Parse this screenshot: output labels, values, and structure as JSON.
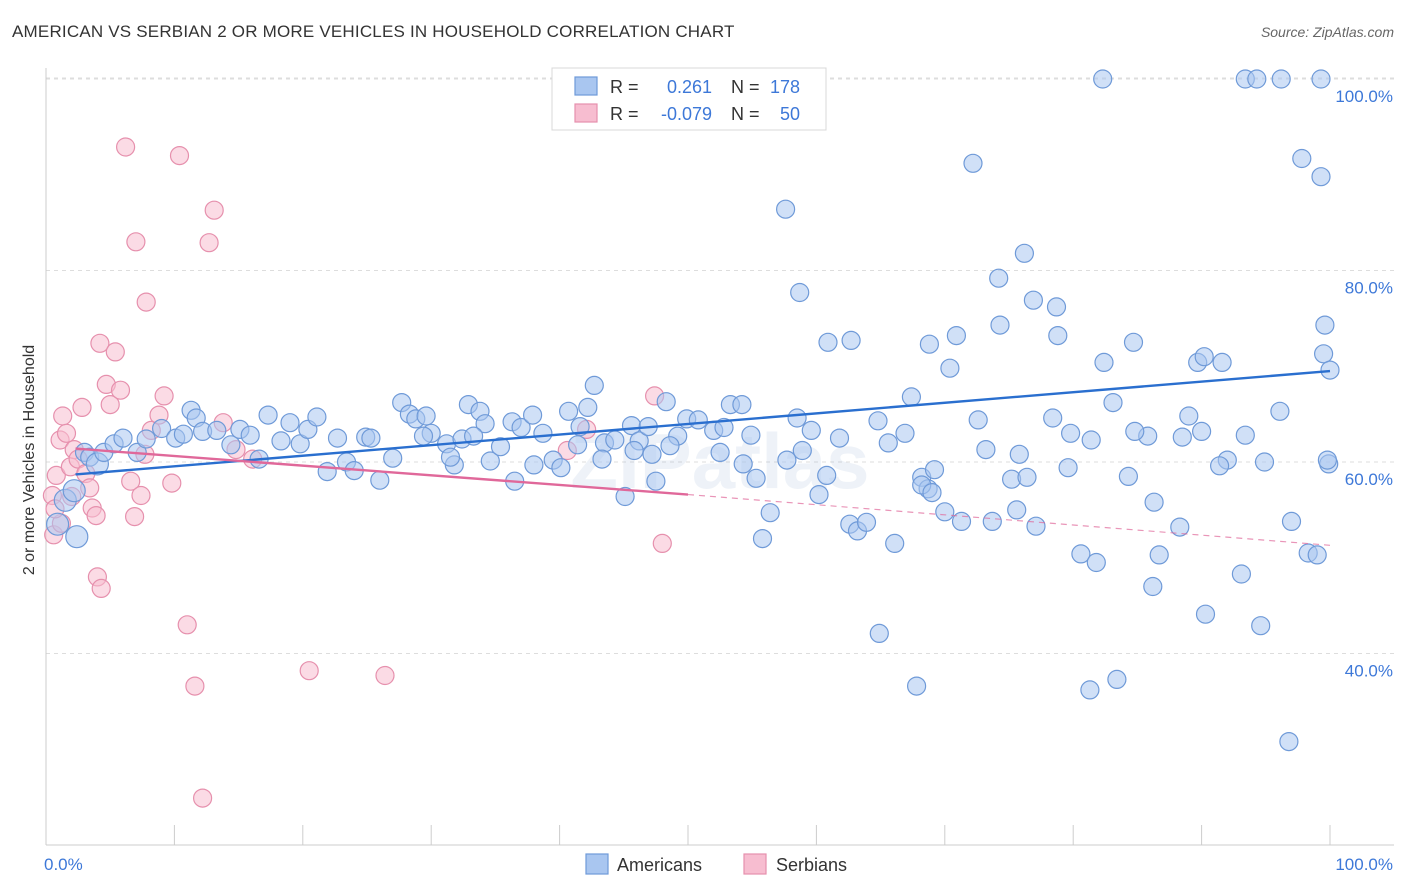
{
  "title": "AMERICAN VS SERBIAN 2 OR MORE VEHICLES IN HOUSEHOLD CORRELATION CHART",
  "source": "Source: ZipAtlas.com",
  "watermark": "ZIPatlas",
  "colors": {
    "americans_fill": "#a9c6f0",
    "americans_stroke": "#6f9ad8",
    "americans_line": "#2a6fcf",
    "serbians_fill": "#f7bdd0",
    "serbians_stroke": "#e690ad",
    "serbians_line": "#e0689a",
    "tick_text": "#3d78d8",
    "grid": "#dddddd"
  },
  "legend": {
    "americans": {
      "r_label": "R =",
      "r_value": "0.261",
      "n_label": "N =",
      "n_value": "178"
    },
    "serbians": {
      "r_label": "R =",
      "r_value": "-0.079",
      "n_label": "N =",
      "n_value": "50"
    }
  },
  "bottom_legend": [
    "Americans",
    "Serbians"
  ],
  "chart_data": {
    "type": "scatter",
    "title": "AMERICAN VS SERBIAN 2 OR MORE VEHICLES IN HOUSEHOLD CORRELATION CHART",
    "xlabel": "",
    "ylabel": "2 or more Vehicles in Household",
    "xlim": [
      0,
      100
    ],
    "ylim": [
      20,
      102
    ],
    "x_tick_labels": [
      "0.0%",
      "100.0%"
    ],
    "y_ticks": [
      40,
      60,
      80,
      100
    ],
    "y_tick_labels": [
      "40.0%",
      "60.0%",
      "80.0%",
      "100.0%"
    ],
    "grid": true,
    "legend_position": "top-center",
    "series": [
      {
        "name": "Americans",
        "r": 0.261,
        "n": 178,
        "trend": [
          [
            2.3,
            58.7
          ],
          [
            100,
            69.5
          ]
        ],
        "points": [
          [
            0.9,
            53.5
          ],
          [
            1.5,
            56.0
          ],
          [
            2.2,
            57.0
          ],
          [
            2.4,
            52.2
          ],
          [
            3.0,
            61.0
          ],
          [
            3.4,
            60.5
          ],
          [
            4.0,
            59.8
          ],
          [
            4.5,
            61.0
          ],
          [
            5.3,
            61.9
          ],
          [
            6.0,
            62.5
          ],
          [
            7.1,
            61.0
          ],
          [
            7.8,
            62.4
          ],
          [
            9.0,
            63.5
          ],
          [
            10.1,
            62.5
          ],
          [
            10.7,
            62.9
          ],
          [
            11.3,
            65.4
          ],
          [
            11.7,
            64.6
          ],
          [
            12.2,
            63.2
          ],
          [
            13.3,
            63.3
          ],
          [
            14.4,
            61.8
          ],
          [
            15.1,
            63.4
          ],
          [
            15.9,
            62.8
          ],
          [
            16.6,
            60.3
          ],
          [
            17.3,
            64.9
          ],
          [
            18.3,
            62.2
          ],
          [
            19.0,
            64.1
          ],
          [
            19.8,
            61.9
          ],
          [
            20.4,
            63.4
          ],
          [
            21.1,
            64.7
          ],
          [
            21.9,
            59.0
          ],
          [
            22.7,
            62.5
          ],
          [
            23.4,
            60.0
          ],
          [
            24.0,
            59.1
          ],
          [
            24.9,
            62.6
          ],
          [
            26.0,
            58.1
          ],
          [
            27.0,
            60.4
          ],
          [
            27.7,
            66.2
          ],
          [
            28.3,
            65.0
          ],
          [
            28.8,
            64.5
          ],
          [
            29.6,
            64.8
          ],
          [
            30.0,
            63.0
          ],
          [
            31.2,
            61.9
          ],
          [
            31.8,
            59.7
          ],
          [
            32.4,
            62.4
          ],
          [
            32.9,
            66.0
          ],
          [
            33.8,
            65.3
          ],
          [
            34.6,
            60.1
          ],
          [
            35.4,
            61.6
          ],
          [
            36.3,
            64.2
          ],
          [
            37.0,
            63.6
          ],
          [
            37.9,
            64.9
          ],
          [
            38.7,
            63.0
          ],
          [
            39.5,
            60.2
          ],
          [
            40.1,
            59.4
          ],
          [
            40.7,
            65.3
          ],
          [
            41.4,
            61.8
          ],
          [
            42.2,
            65.7
          ],
          [
            42.7,
            68.0
          ],
          [
            43.5,
            62.0
          ],
          [
            44.3,
            62.3
          ],
          [
            45.1,
            56.4
          ],
          [
            45.6,
            63.8
          ],
          [
            46.2,
            62.2
          ],
          [
            46.9,
            63.7
          ],
          [
            47.5,
            58.0
          ],
          [
            48.3,
            66.3
          ],
          [
            49.2,
            62.7
          ],
          [
            49.9,
            64.5
          ],
          [
            50.8,
            64.4
          ],
          [
            52.0,
            63.3
          ],
          [
            53.3,
            66.0
          ],
          [
            54.3,
            59.8
          ],
          [
            54.9,
            62.8
          ],
          [
            55.3,
            58.3
          ],
          [
            56.4,
            54.7
          ],
          [
            57.7,
            60.2
          ],
          [
            58.5,
            64.6
          ],
          [
            59.6,
            63.3
          ],
          [
            60.2,
            56.6
          ],
          [
            60.8,
            58.6
          ],
          [
            61.8,
            62.5
          ],
          [
            62.6,
            53.5
          ],
          [
            63.2,
            52.8
          ],
          [
            63.9,
            53.7
          ],
          [
            64.8,
            64.3
          ],
          [
            65.6,
            62.0
          ],
          [
            66.1,
            51.5
          ],
          [
            66.9,
            63.0
          ],
          [
            67.4,
            66.8
          ],
          [
            68.2,
            58.4
          ],
          [
            68.7,
            57.2
          ],
          [
            69.2,
            59.2
          ],
          [
            70.0,
            54.8
          ],
          [
            70.4,
            69.8
          ],
          [
            70.9,
            73.2
          ],
          [
            71.3,
            53.8
          ],
          [
            72.6,
            64.4
          ],
          [
            73.2,
            61.3
          ],
          [
            73.7,
            53.8
          ],
          [
            74.2,
            79.2
          ],
          [
            75.2,
            58.2
          ],
          [
            75.8,
            60.8
          ],
          [
            76.4,
            58.4
          ],
          [
            77.1,
            53.3
          ],
          [
            76.9,
            76.9
          ],
          [
            78.4,
            64.6
          ],
          [
            78.8,
            73.2
          ],
          [
            79.6,
            59.4
          ],
          [
            80.6,
            50.4
          ],
          [
            81.4,
            62.3
          ],
          [
            81.8,
            49.5
          ],
          [
            83.1,
            66.2
          ],
          [
            84.3,
            58.5
          ],
          [
            84.7,
            72.5
          ],
          [
            85.8,
            62.7
          ],
          [
            86.3,
            55.8
          ],
          [
            86.7,
            50.3
          ],
          [
            88.3,
            53.2
          ],
          [
            89.0,
            64.8
          ],
          [
            89.7,
            70.4
          ],
          [
            90.2,
            71.0
          ],
          [
            91.6,
            70.4
          ],
          [
            92.0,
            60.2
          ],
          [
            93.4,
            62.8
          ],
          [
            94.9,
            60.0
          ],
          [
            96.1,
            65.3
          ],
          [
            97.0,
            53.8
          ],
          [
            98.3,
            50.5
          ],
          [
            99.0,
            50.3
          ],
          [
            52.5,
            61.0
          ],
          [
            54.2,
            66.0
          ],
          [
            57.6,
            86.4
          ],
          [
            58.7,
            77.7
          ],
          [
            60.9,
            72.5
          ],
          [
            62.7,
            72.7
          ],
          [
            64.9,
            42.1
          ],
          [
            67.8,
            36.6
          ],
          [
            68.2,
            57.6
          ],
          [
            69.0,
            56.8
          ],
          [
            68.8,
            72.3
          ],
          [
            72.2,
            91.2
          ],
          [
            74.3,
            74.3
          ],
          [
            75.6,
            55.0
          ],
          [
            76.2,
            81.8
          ],
          [
            78.7,
            76.2
          ],
          [
            79.8,
            63.0
          ],
          [
            81.3,
            36.2
          ],
          [
            82.4,
            70.4
          ],
          [
            83.4,
            37.3
          ],
          [
            84.8,
            63.2
          ],
          [
            86.2,
            47.0
          ],
          [
            88.5,
            62.6
          ],
          [
            90.0,
            63.2
          ],
          [
            90.3,
            44.1
          ],
          [
            91.4,
            59.6
          ],
          [
            93.1,
            48.3
          ],
          [
            94.6,
            42.9
          ],
          [
            96.8,
            30.8
          ],
          [
            97.8,
            91.7
          ],
          [
            99.3,
            89.8
          ],
          [
            99.6,
            74.3
          ],
          [
            99.5,
            71.3
          ],
          [
            99.9,
            59.8
          ],
          [
            100.0,
            69.6
          ],
          [
            99.8,
            60.2
          ],
          [
            82.3,
            100.0
          ],
          [
            93.4,
            100.0
          ],
          [
            94.3,
            100.0
          ],
          [
            96.2,
            100.0
          ],
          [
            99.3,
            100.0
          ],
          [
            55.8,
            52.0
          ],
          [
            45.8,
            61.2
          ],
          [
            38.0,
            59.7
          ],
          [
            41.6,
            63.7
          ],
          [
            58.9,
            61.2
          ],
          [
            47.2,
            60.8
          ],
          [
            36.5,
            58.0
          ],
          [
            31.5,
            60.5
          ],
          [
            25.3,
            62.5
          ],
          [
            34.2,
            64.0
          ],
          [
            43.3,
            60.3
          ],
          [
            48.6,
            61.7
          ],
          [
            52.8,
            63.6
          ],
          [
            33.3,
            62.7
          ],
          [
            29.4,
            62.7
          ]
        ]
      },
      {
        "name": "Serbians",
        "r": -0.079,
        "n": 50,
        "trend_solid": [
          [
            2.3,
            61.4
          ],
          [
            50,
            56.6
          ]
        ],
        "trend_dashed": [
          [
            50,
            56.6
          ],
          [
            100,
            51.3
          ]
        ],
        "points": [
          [
            0.5,
            56.5
          ],
          [
            0.8,
            58.6
          ],
          [
            1.1,
            62.3
          ],
          [
            1.3,
            64.8
          ],
          [
            1.6,
            63.0
          ],
          [
            1.9,
            59.5
          ],
          [
            2.2,
            61.3
          ],
          [
            2.5,
            60.3
          ],
          [
            2.8,
            65.7
          ],
          [
            3.1,
            58.8
          ],
          [
            3.4,
            57.3
          ],
          [
            3.6,
            55.2
          ],
          [
            3.9,
            54.4
          ],
          [
            4.2,
            72.4
          ],
          [
            4.7,
            68.1
          ],
          [
            5.0,
            66.0
          ],
          [
            5.4,
            71.5
          ],
          [
            5.8,
            67.5
          ],
          [
            6.2,
            92.9
          ],
          [
            6.6,
            58.0
          ],
          [
            7.0,
            83.0
          ],
          [
            7.4,
            56.5
          ],
          [
            7.8,
            76.7
          ],
          [
            8.2,
            63.3
          ],
          [
            8.8,
            64.9
          ],
          [
            9.2,
            66.9
          ],
          [
            9.8,
            57.8
          ],
          [
            10.4,
            92.0
          ],
          [
            11.0,
            43.0
          ],
          [
            11.6,
            36.6
          ],
          [
            12.2,
            24.9
          ],
          [
            12.7,
            82.9
          ],
          [
            13.1,
            86.3
          ],
          [
            13.8,
            64.1
          ],
          [
            14.8,
            61.3
          ],
          [
            16.1,
            60.3
          ],
          [
            20.5,
            38.2
          ],
          [
            26.4,
            37.7
          ],
          [
            40.6,
            61.2
          ],
          [
            42.1,
            63.4
          ],
          [
            47.4,
            66.9
          ],
          [
            48.0,
            51.5
          ],
          [
            4.0,
            48.0
          ],
          [
            4.3,
            46.8
          ],
          [
            0.6,
            52.4
          ],
          [
            1.2,
            53.6
          ],
          [
            0.7,
            55.1
          ],
          [
            2.0,
            56.4
          ],
          [
            6.9,
            54.3
          ],
          [
            7.7,
            60.8
          ]
        ]
      }
    ]
  }
}
